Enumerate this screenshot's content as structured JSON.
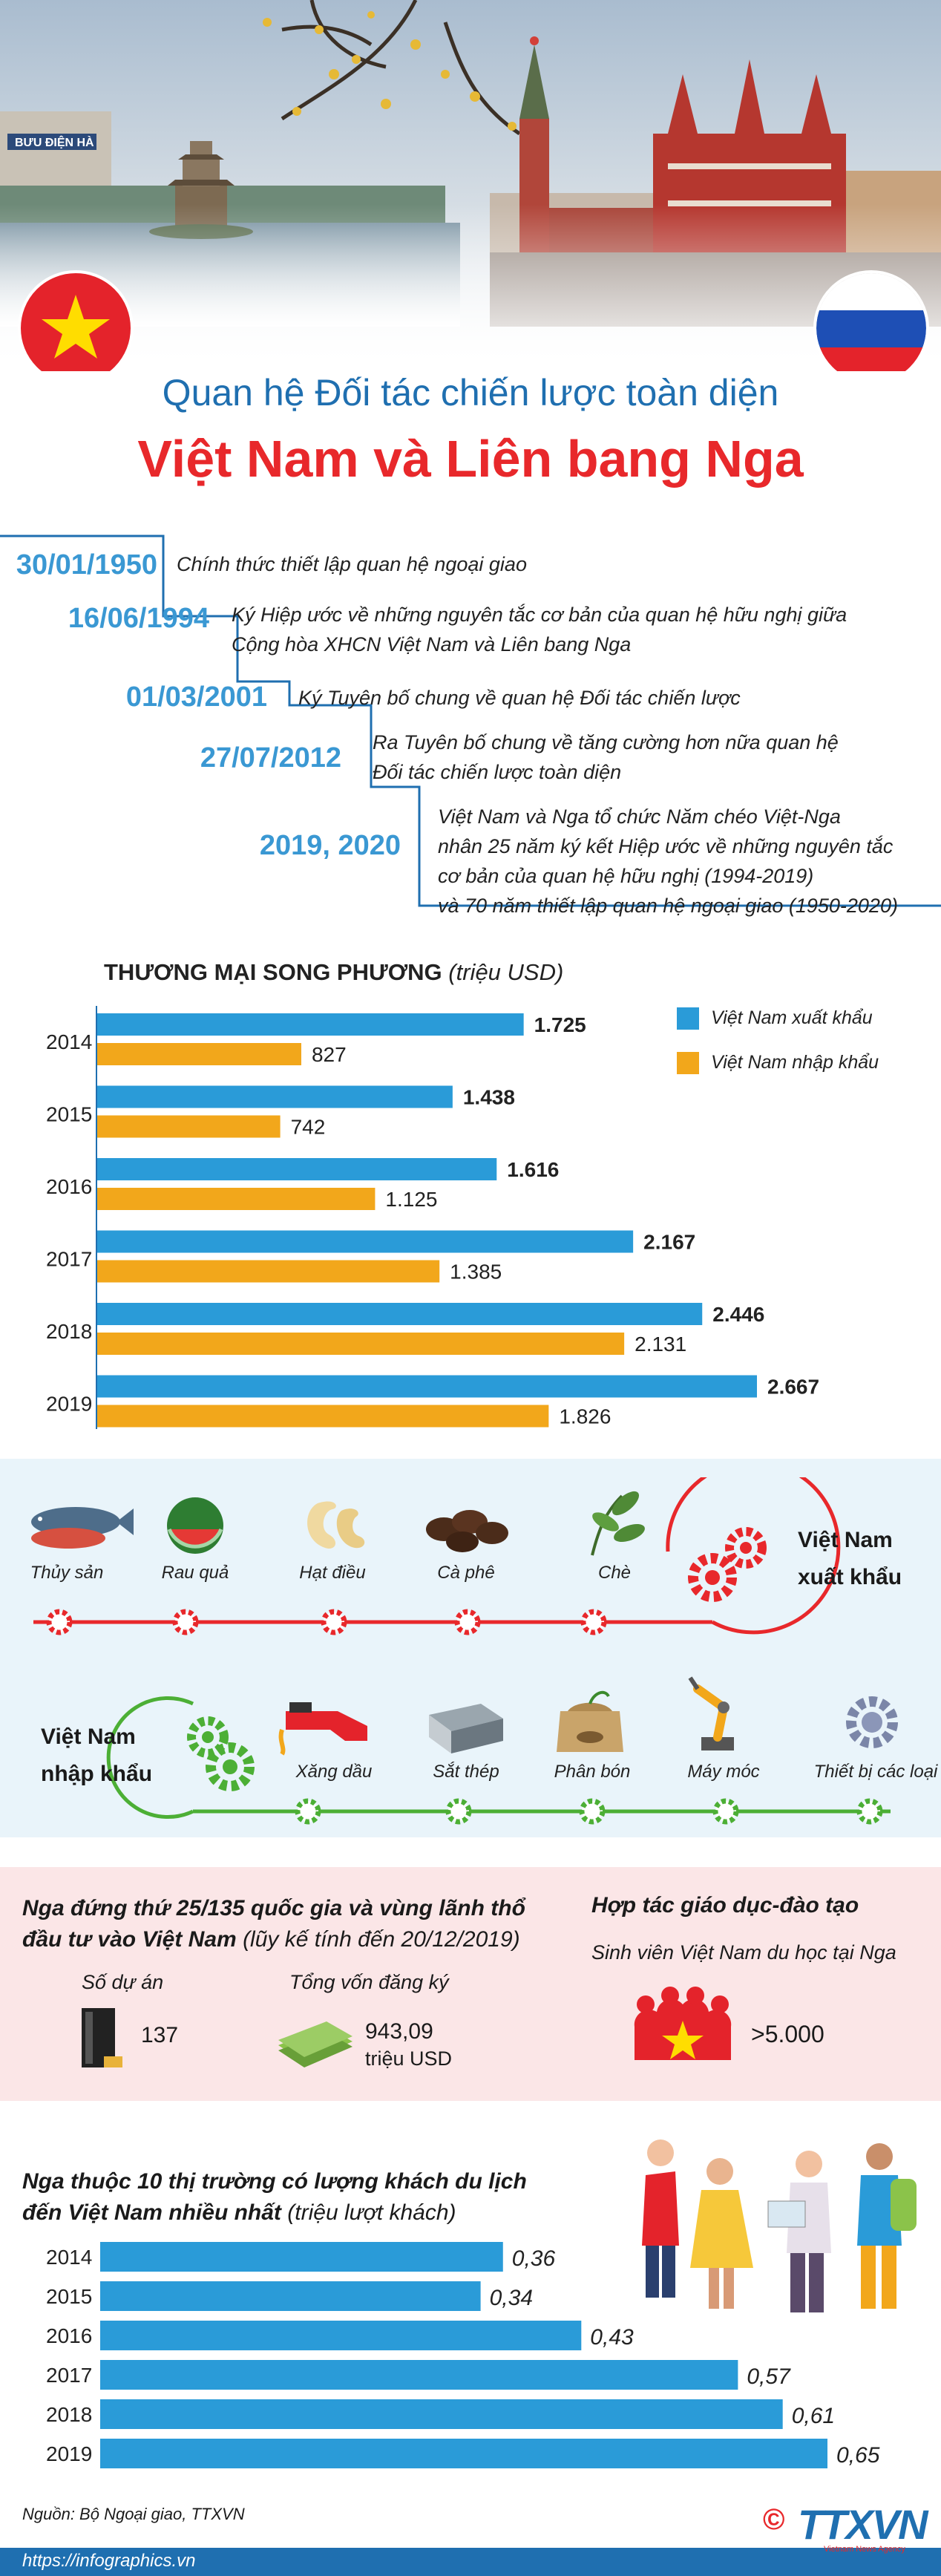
{
  "header": {
    "title_line1": "Quan hệ Đối tác chiến lược toàn diện",
    "title_line2": "Việt Nam và Liên bang Nga",
    "sign_text": "BƯU ĐIỆN HÀ"
  },
  "timeline": [
    {
      "date": "30/01/1950",
      "text": [
        "Chính thức thiết lập quan hệ ngoại giao"
      ]
    },
    {
      "date": "16/06/1994",
      "text": [
        "Ký Hiệp ước về những nguyên tắc cơ bản của quan hệ hữu nghị giữa",
        "Cộng hòa XHCN Việt Nam và Liên bang Nga"
      ]
    },
    {
      "date": "01/03/2001",
      "text": [
        "Ký Tuyên bố chung về quan hệ Đối tác chiến lược"
      ]
    },
    {
      "date": "27/07/2012",
      "text": [
        "Ra Tuyên bố chung về tăng cường hơn nữa quan hệ",
        "Đối tác chiến lược toàn diện"
      ]
    },
    {
      "date": "2019, 2020",
      "text": [
        "Việt Nam và Nga tổ chức Năm chéo Việt-Nga",
        "nhân 25 năm ký kết Hiệp ước về những nguyên tắc",
        "cơ bản của quan hệ hữu nghị (1994-2019)",
        "và 70 năm thiết lập quan hệ ngoại giao (1950-2020)"
      ]
    }
  ],
  "trade": {
    "title": "THƯƠNG MẠI SONG PHƯƠNG",
    "unit": "(triệu USD)"
  },
  "chart_data": [
    {
      "type": "bar",
      "title": "THƯƠNG MẠI SONG PHƯƠNG (triệu USD)",
      "categories": [
        "2014",
        "2015",
        "2016",
        "2017",
        "2018",
        "2019"
      ],
      "series": [
        {
          "name": "Việt Nam xuất khẩu",
          "color": "#2a9bd8",
          "values": [
            1725,
            1438,
            1616,
            2167,
            2446,
            2667
          ],
          "labels": [
            "1.725",
            "1.438",
            "1.616",
            "2.167",
            "2.446",
            "2.667"
          ]
        },
        {
          "name": "Việt Nam nhập khẩu",
          "color": "#f2a71b",
          "values": [
            827,
            742,
            1125,
            1385,
            2131,
            1826
          ],
          "labels": [
            "827",
            "742",
            "1.125",
            "1.385",
            "2.131",
            "1.826"
          ]
        }
      ],
      "legend": "top-right"
    },
    {
      "type": "bar",
      "title": "Nga thuộc 10 thị trường có lượng khách du lịch đến Việt Nam nhiều nhất (triệu lượt khách)",
      "categories": [
        "2014",
        "2015",
        "2016",
        "2017",
        "2018",
        "2019"
      ],
      "series": [
        {
          "color": "#2a9bd8",
          "values": [
            0.36,
            0.34,
            0.43,
            0.57,
            0.61,
            0.65
          ],
          "labels": [
            "0,36",
            "0,34",
            "0,43",
            "0,57",
            "0,61",
            "0,65"
          ]
        }
      ]
    }
  ],
  "exports": {
    "label_line1": "Việt Nam",
    "label_line2": "xuất khẩu",
    "items": [
      "Thủy sản",
      "Rau quả",
      "Hạt điều",
      "Cà phê",
      "Chè"
    ]
  },
  "imports": {
    "label_line1": "Việt Nam",
    "label_line2": "nhập khẩu",
    "items": [
      "Xăng dầu",
      "Sắt thép",
      "Phân bón",
      "Máy móc",
      "Thiết bị các loại"
    ]
  },
  "investment": {
    "title_line1": "Nga đứng thứ 25/135 quốc gia và vùng lãnh thổ",
    "title_line2_bold": "đầu tư vào Việt Nam",
    "title_line2_note": "(lũy kế tính đến 20/12/2019)",
    "projects_label": "Số dự án",
    "projects_value": "137",
    "capital_label": "Tổng vốn đăng ký",
    "capital_value": "943,09",
    "capital_unit": "triệu USD"
  },
  "education": {
    "title": "Hợp tác giáo dục-đào tạo",
    "subtitle": "Sinh viên Việt Nam du học tại Nga",
    "value": ">5.000"
  },
  "tourism": {
    "title_line1": "Nga thuộc 10 thị trường có lượng khách du lịch",
    "title_line2": "đến Việt Nam nhiều nhất",
    "unit": "(triệu lượt khách)"
  },
  "footer": {
    "source": "Nguồn: Bộ Ngoại giao, TTXVN",
    "site": "https://infographics.vn",
    "logo": "TTXVN",
    "logo_sub": "Vietnam News Agency",
    "copyright": "©"
  },
  "colors": {
    "blue": "#2a9bd8",
    "orange": "#f2a71b",
    "red": "#e8282b",
    "navy": "#1f6fb0"
  }
}
